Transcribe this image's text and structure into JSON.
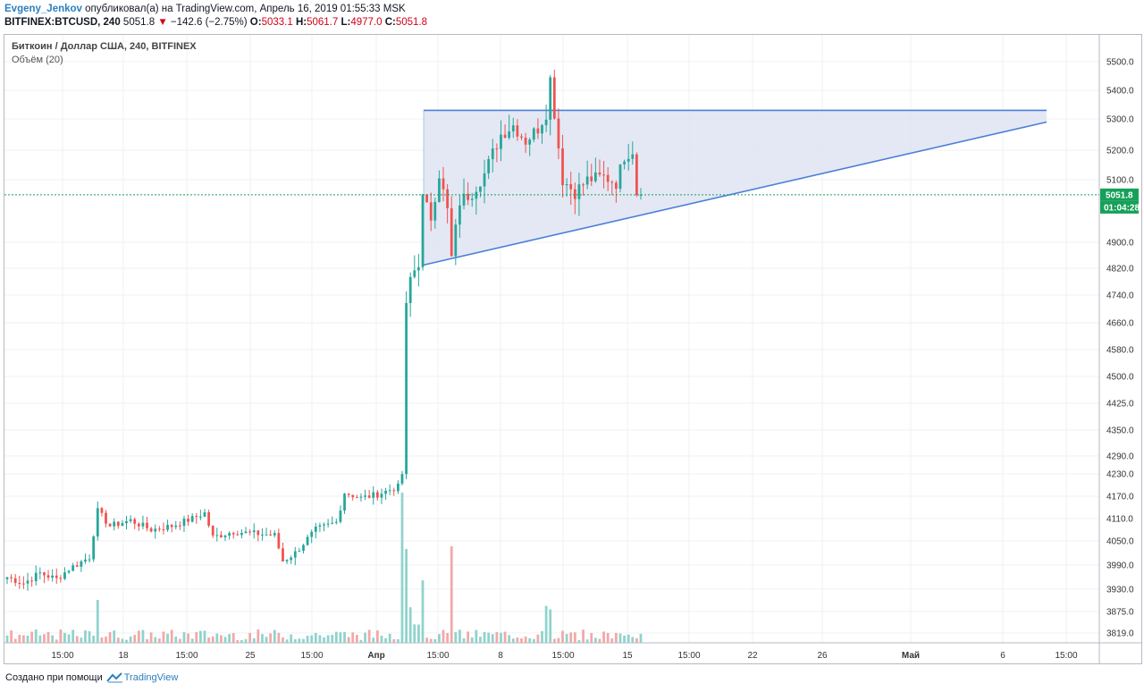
{
  "header": {
    "author": "Evgeny_Jenkov",
    "published": "опубликовал(а) на TradingView.com, Апрель 16, 2019 01:55:33 MSK",
    "symbol": "BITFINEX:BTCUSD, 240",
    "last": "5051.8",
    "change": "−142.6 (−2.75%)",
    "o_label": "O:",
    "o": "5033.1",
    "h_label": "H:",
    "h": "5061.7",
    "l_label": "L:",
    "l": "4977.0",
    "c_label": "C:",
    "c": "5051.8"
  },
  "legend": {
    "title": "Биткоин / Доллар США, 240, BITFINEX",
    "volume": "Объём (20)"
  },
  "footer": {
    "created": "Создано при помощи",
    "brand": "TradingView"
  },
  "colors": {
    "up": "#26a69a",
    "down": "#ef5350",
    "vol_up": "#8fd3cc",
    "vol_down": "#f2a8a8",
    "triangle": "#4a7fd8",
    "triangle_fill": "#dfe4f2",
    "price_line": "#16a05a",
    "grid": "#edf0f3"
  },
  "chart_data": {
    "type": "candlestick",
    "symbol": "BITFINEX:BTCUSD",
    "interval": "240",
    "y_ticks": [
      5500.0,
      5400.0,
      5300.0,
      5200.0,
      5100.0,
      4900.0,
      4820.0,
      4740.0,
      4660.0,
      4580.0,
      4500.0,
      4425.0,
      4350.0,
      4290.0,
      4230.0,
      4170.0,
      4110.0,
      4050.0,
      3990.0,
      3930.0,
      3875.0,
      3819.0
    ],
    "y_tick_labels": [
      "5500.0",
      "5400.0",
      "5300.0",
      "5200.0",
      "5100.0",
      "4900.0",
      "4820.0",
      "4740.0",
      "4660.0",
      "4580.0",
      "4500.0",
      "4425.0",
      "4350.0",
      "4290.0",
      "4230.0",
      "4170.0",
      "4110.0",
      "4050.0",
      "3990.0",
      "3930.0",
      "3875.0",
      "3819.0"
    ],
    "x_ticks": [
      {
        "label": "15:00",
        "bold": false
      },
      {
        "label": "18",
        "bold": false
      },
      {
        "label": "15:00",
        "bold": false
      },
      {
        "label": "25",
        "bold": false
      },
      {
        "label": "15:00",
        "bold": false
      },
      {
        "label": "Апр",
        "bold": true
      },
      {
        "label": "15:00",
        "bold": false
      },
      {
        "label": "8",
        "bold": false
      },
      {
        "label": "15:00",
        "bold": false
      },
      {
        "label": "15",
        "bold": false
      },
      {
        "label": "15:00",
        "bold": false
      },
      {
        "label": "22",
        "bold": false
      },
      {
        "label": "26",
        "bold": false
      },
      {
        "label": "Май",
        "bold": true
      },
      {
        "label": "6",
        "bold": false
      },
      {
        "label": "15:00",
        "bold": false
      }
    ],
    "last_price": 5051.8,
    "last_price_label": "5051.8",
    "countdown": "01:04:28",
    "anchors": [
      [
        0,
        3960
      ],
      [
        4,
        3945
      ],
      [
        8,
        3970
      ],
      [
        12,
        3955
      ],
      [
        15,
        3980
      ],
      [
        20,
        4010
      ],
      [
        22,
        4130
      ],
      [
        25,
        4090
      ],
      [
        30,
        4105
      ],
      [
        35,
        4080
      ],
      [
        40,
        4090
      ],
      [
        45,
        4110
      ],
      [
        48,
        4125
      ],
      [
        50,
        4060
      ],
      [
        55,
        4075
      ],
      [
        60,
        4070
      ],
      [
        65,
        4065
      ],
      [
        67,
        4000
      ],
      [
        70,
        4020
      ],
      [
        75,
        4080
      ],
      [
        80,
        4100
      ],
      [
        82,
        4180
      ],
      [
        86,
        4165
      ],
      [
        90,
        4175
      ],
      [
        95,
        4195
      ],
      [
        96,
        4230
      ],
      [
        97,
        4700
      ],
      [
        98,
        4790
      ],
      [
        100,
        4840
      ],
      [
        101,
        5040
      ],
      [
        103,
        4980
      ],
      [
        105,
        5120
      ],
      [
        107,
        5000
      ],
      [
        108,
        4850
      ],
      [
        110,
        5030
      ],
      [
        113,
        5060
      ],
      [
        116,
        5120
      ],
      [
        118,
        5190
      ],
      [
        120,
        5250
      ],
      [
        123,
        5280
      ],
      [
        126,
        5230
      ],
      [
        129,
        5270
      ],
      [
        131,
        5320
      ],
      [
        132,
        5440
      ],
      [
        133,
        5320
      ],
      [
        135,
        5100
      ],
      [
        138,
        5060
      ],
      [
        141,
        5100
      ],
      [
        145,
        5110
      ],
      [
        148,
        5090
      ],
      [
        150,
        5180
      ],
      [
        152,
        5200
      ],
      [
        153,
        5060
      ],
      [
        154,
        5050
      ]
    ],
    "triangle": {
      "top_left": [
        "2019-04-02 12:00",
        5330
      ],
      "top_right": [
        "2019-05-07 08:00",
        5330
      ],
      "bottom_left": [
        "2019-04-02 12:00",
        4830
      ],
      "bottom_right": [
        "2019-05-07 08:00",
        5290
      ]
    }
  }
}
